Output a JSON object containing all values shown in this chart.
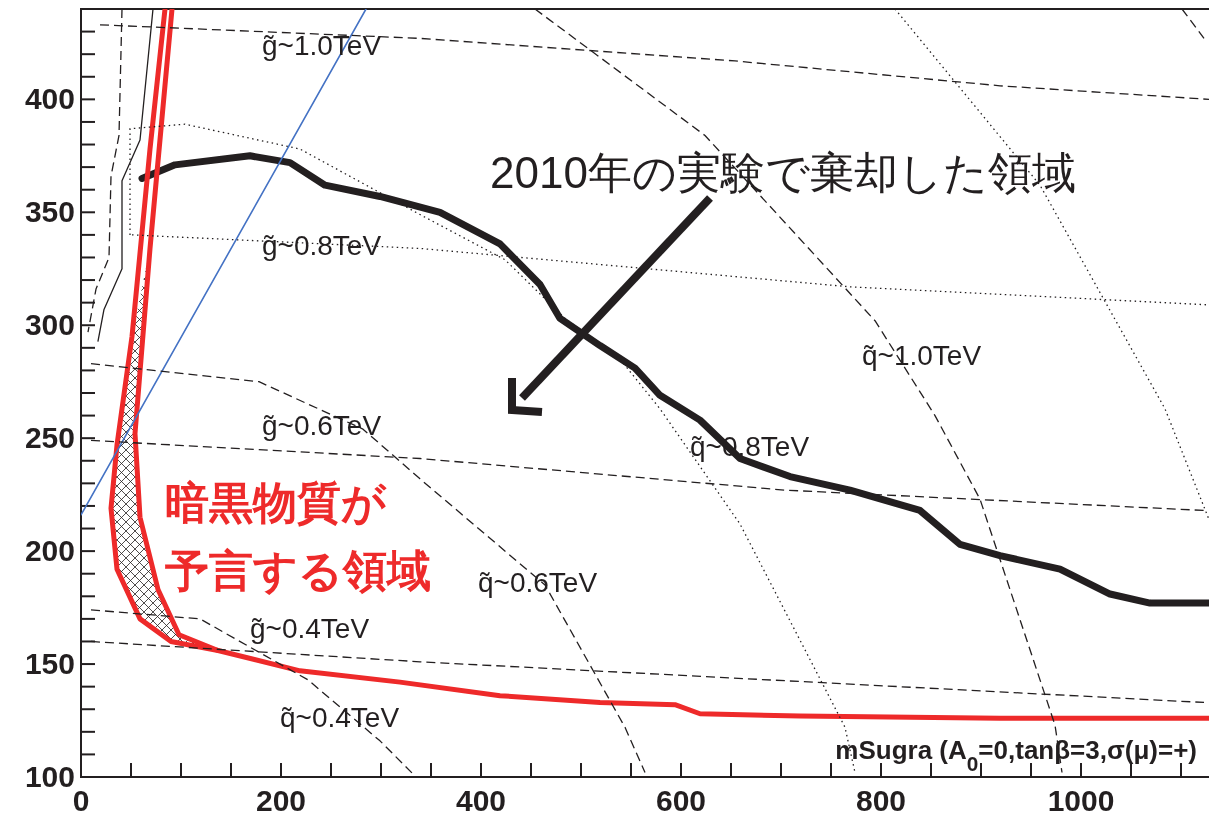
{
  "chart_data": {
    "type": "line",
    "xlim": [
      0,
      1128
    ],
    "ylim": [
      100,
      440
    ],
    "xticks": [
      0,
      {
        "value": 50,
        "label": null
      },
      {
        "value": 100,
        "label": null
      },
      {
        "value": 150,
        "label": null
      },
      200,
      {
        "value": 250,
        "label": null
      },
      {
        "value": 300,
        "label": null
      },
      {
        "value": 350,
        "label": null
      },
      400,
      {
        "value": 450,
        "label": null
      },
      {
        "value": 500,
        "label": null
      },
      {
        "value": 550,
        "label": null
      },
      600,
      {
        "value": 650,
        "label": null
      },
      {
        "value": 700,
        "label": null
      },
      {
        "value": 750,
        "label": null
      },
      800,
      {
        "value": 850,
        "label": null
      },
      {
        "value": 900,
        "label": null
      },
      {
        "value": 950,
        "label": null
      },
      1000,
      {
        "value": 1050,
        "label": null
      },
      {
        "value": 1100,
        "label": null
      }
    ],
    "yticks": [
      100,
      {
        "value": 110,
        "label": null
      },
      {
        "value": 120,
        "label": null
      },
      {
        "value": 130,
        "label": null
      },
      {
        "value": 140,
        "label": null
      },
      150,
      {
        "value": 160,
        "label": null
      },
      {
        "value": 170,
        "label": null
      },
      {
        "value": 180,
        "label": null
      },
      {
        "value": 190,
        "label": null
      },
      200,
      {
        "value": 210,
        "label": null
      },
      {
        "value": 220,
        "label": null
      },
      {
        "value": 230,
        "label": null
      },
      {
        "value": 240,
        "label": null
      },
      250,
      {
        "value": 260,
        "label": null
      },
      {
        "value": 270,
        "label": null
      },
      {
        "value": 280,
        "label": null
      },
      {
        "value": 290,
        "label": null
      },
      300,
      {
        "value": 310,
        "label": null
      },
      {
        "value": 320,
        "label": null
      },
      {
        "value": 330,
        "label": null
      },
      {
        "value": 340,
        "label": null
      },
      350,
      {
        "value": 360,
        "label": null
      },
      {
        "value": 370,
        "label": null
      },
      {
        "value": 380,
        "label": null
      },
      {
        "value": 390,
        "label": null
      },
      400,
      {
        "value": 410,
        "label": null
      },
      {
        "value": 420,
        "label": null
      },
      {
        "value": 430,
        "label": null
      }
    ],
    "series": [
      {
        "color": "#231f20",
        "line_style": "solid",
        "x": [
          61,
          94,
          169,
          209,
          244,
          299,
          359,
          419,
          459,
          479,
          519,
          554,
          579,
          619,
          659,
          709,
          769,
          839,
          879,
          919,
          979,
          1029,
          1069,
          1128
        ],
        "values": [
          365,
          371,
          375,
          372,
          362,
          357,
          350,
          336,
          318,
          303,
          291,
          281,
          269,
          258,
          241,
          233,
          227,
          218,
          203,
          198,
          192,
          181,
          177,
          177
        ]
      },
      {
        "color": "#ee2a2a",
        "line_style": "solid",
        "x": [
          84,
          69,
          51,
          36,
          30,
          36,
          59,
          90,
          137,
          219,
          319,
          419,
          519,
          594,
          619,
          719,
          919,
          1128
        ],
        "values": [
          440,
          378,
          295,
          247,
          219,
          192,
          170,
          160,
          156,
          147,
          142,
          136,
          133,
          132,
          128,
          127,
          126,
          126
        ]
      },
      {
        "color": "#ee2a2a",
        "line_style": "solid",
        "x": [
          91,
          69,
          54,
          59,
          77,
          98,
          137
        ],
        "values": [
          440,
          334,
          252,
          215,
          183,
          163,
          156
        ]
      },
      {
        "color": "#4472c4",
        "line_style": "solid",
        "x": [
          0,
          285
        ],
        "values": [
          216,
          440
        ]
      },
      {
        "color": "#231f20",
        "line_style": "dashed",
        "x": [
          19,
          339,
          654,
          919,
          1128
        ],
        "values": [
          433,
          427,
          417,
          406,
          400
        ]
      },
      {
        "color": "#231f20",
        "line_style": "dotted",
        "x": [
          51,
          339,
          769,
          1128
        ],
        "values": [
          340,
          334,
          317,
          309
        ]
      },
      {
        "color": "#231f20",
        "line_style": "dashed",
        "x": [
          10,
          339,
          704,
          1123
        ],
        "values": [
          249,
          241,
          227,
          218
        ]
      },
      {
        "color": "#231f20",
        "line_style": "dashed",
        "x": [
          10,
          339,
          1123
        ],
        "values": [
          160,
          151,
          133
        ]
      },
      {
        "color": "#231f20",
        "line_style": "dashed",
        "x": [
          10,
          119,
          227,
          299,
          335
        ],
        "values": [
          174,
          170,
          143,
          116,
          100
        ]
      },
      {
        "color": "#231f20",
        "line_style": "dashed",
        "x": [
          10,
          178,
          282,
          339,
          464,
          544,
          564
        ],
        "values": [
          283,
          275,
          254,
          232,
          185,
          122,
          102
        ]
      },
      {
        "color": "#231f20",
        "line_style": "dotted",
        "x": [
          49,
          49,
          104,
          219,
          339,
          424,
          484,
          539,
          579,
          659,
          729,
          764,
          774
        ],
        "values": [
          340,
          387,
          389,
          378,
          349,
          329,
          303,
          285,
          263,
          212,
          152,
          122,
          102
        ]
      },
      {
        "color": "#231f20",
        "line_style": "dashed",
        "x": [
          454,
          624,
          794,
          854,
          899,
          974,
          981
        ],
        "values": [
          440,
          384,
          302,
          260,
          223,
          123,
          102
        ]
      },
      {
        "color": "#231f20",
        "line_style": "dotted",
        "x": [
          814,
          959,
          1084,
          1128
        ],
        "values": [
          440,
          362,
          263,
          214
        ]
      },
      {
        "color": "#231f20",
        "line_style": "dashed",
        "x": [
          1101,
          1123
        ],
        "values": [
          440,
          427
        ]
      },
      {
        "color": "#231f20",
        "line_style": "dashed",
        "x": [
          41,
          38,
          30,
          28,
          15,
          7
        ],
        "values": [
          440,
          384,
          366,
          330,
          316,
          297
        ]
      },
      {
        "color": "#231f20",
        "line_style": "solid",
        "x": [
          72,
          59,
          41,
          41,
          23,
          17
        ],
        "values": [
          440,
          382,
          364,
          325,
          307,
          293
        ]
      }
    ],
    "annotations": [
      "g̃~1.0TeV",
      "g̃~0.8TeV",
      "g̃~0.6TeV",
      "g̃~0.4TeV",
      "q̃~0.4TeV",
      "q̃~0.6TeV",
      "q̃~0.8TeV",
      "q̃~1.0TeV",
      "mSugra (A$_{0}$=0,tanβ=3,σ(μ)=+)",
      "2010年の実験で棄却した領域",
      "暗黒物質が",
      "予言する領域"
    ]
  }
}
